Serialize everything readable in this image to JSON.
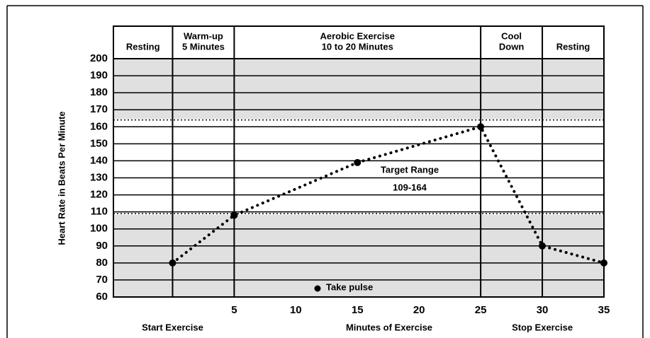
{
  "chart_data": {
    "type": "line",
    "ylabel": "Heart Rate in Beats Per Minute",
    "xlabel": "Minutes of Exercise",
    "xlim": [
      -4.8,
      35
    ],
    "ylim": [
      60,
      200
    ],
    "xticks": [
      5,
      10,
      15,
      20,
      25,
      30,
      35
    ],
    "yticks": [
      60,
      70,
      80,
      90,
      100,
      110,
      120,
      130,
      140,
      150,
      160,
      170,
      180,
      190,
      200
    ],
    "grid": true,
    "series": [
      {
        "name": "Take pulse",
        "color": "#000000",
        "x": [
          0,
          5,
          15,
          25,
          30,
          35
        ],
        "values": [
          80,
          108,
          139,
          160,
          90,
          80
        ]
      }
    ],
    "target_range": {
      "label": "Target Range",
      "range_label": "109-164",
      "low": 109,
      "high": 164
    },
    "phases": [
      {
        "lines": [
          "Resting"
        ],
        "start": -4.8,
        "end": 0
      },
      {
        "lines": [
          "Warm-up",
          "5 Minutes"
        ],
        "start": 0,
        "end": 5
      },
      {
        "lines": [
          "Aerobic Exercise",
          "10 to 20 Minutes"
        ],
        "start": 5,
        "end": 25
      },
      {
        "lines": [
          "Cool",
          "Down"
        ],
        "start": 25,
        "end": 30
      },
      {
        "lines": [
          "Resting"
        ],
        "start": 30,
        "end": 35
      }
    ],
    "x_annotations": [
      {
        "text": "Start Exercise",
        "x": 0
      },
      {
        "text": "Stop Exercise",
        "x": 30
      }
    ]
  }
}
